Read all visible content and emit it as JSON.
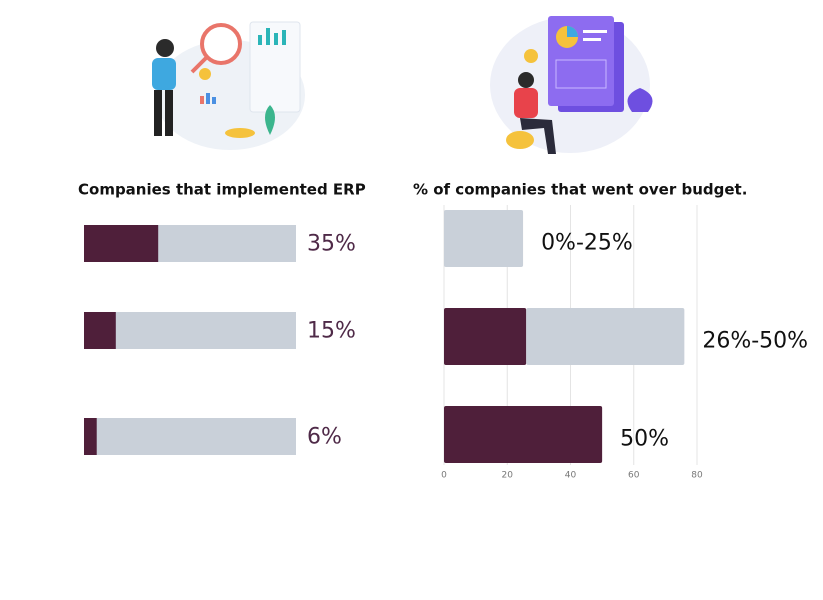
{
  "chart_data": [
    {
      "type": "bar",
      "orientation": "horizontal",
      "title": "Companies that implemented ERP",
      "values": [
        35,
        15,
        6
      ],
      "value_labels": [
        "35%",
        "15%",
        "6%"
      ],
      "xlim": [
        0,
        100
      ],
      "color": "#4f1f3a",
      "track_color": "#c9d0d9",
      "label_color": "#4f2a48"
    },
    {
      "type": "stacked_bar",
      "orientation": "horizontal",
      "title": "% of companies that went over budget.",
      "categories": [
        "0%-25%",
        "26%-50%",
        "50%"
      ],
      "series": [
        {
          "color": "#4f1f3a",
          "values": [
            0,
            26,
            50
          ]
        },
        {
          "color": "#c9d0d9",
          "values": [
            25,
            50,
            0
          ]
        }
      ],
      "xlim": [
        0,
        80
      ],
      "xticks": [
        0,
        20,
        40,
        60,
        80
      ],
      "grid": true
    }
  ]
}
